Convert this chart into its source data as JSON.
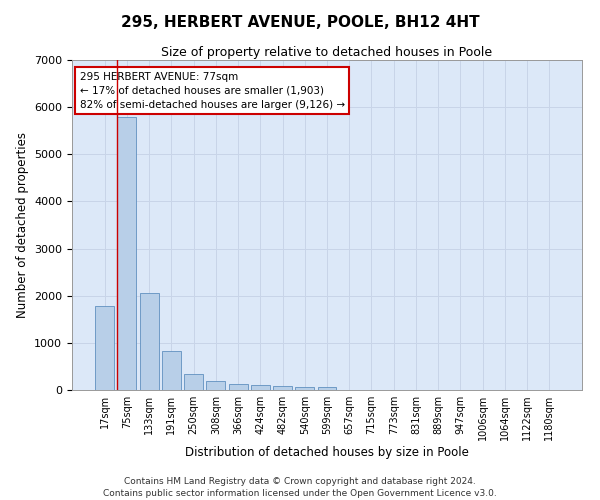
{
  "title": "295, HERBERT AVENUE, POOLE, BH12 4HT",
  "subtitle": "Size of property relative to detached houses in Poole",
  "xlabel": "Distribution of detached houses by size in Poole",
  "ylabel": "Number of detached properties",
  "categories": [
    "17sqm",
    "75sqm",
    "133sqm",
    "191sqm",
    "250sqm",
    "308sqm",
    "366sqm",
    "424sqm",
    "482sqm",
    "540sqm",
    "599sqm",
    "657sqm",
    "715sqm",
    "773sqm",
    "831sqm",
    "889sqm",
    "947sqm",
    "1006sqm",
    "1064sqm",
    "1122sqm",
    "1180sqm"
  ],
  "values": [
    1780,
    5800,
    2060,
    830,
    340,
    185,
    120,
    100,
    90,
    65,
    60,
    0,
    0,
    0,
    0,
    0,
    0,
    0,
    0,
    0,
    0
  ],
  "bar_color": "#b8cfe8",
  "bar_edgecolor": "#6090c0",
  "highlight_bar_index": 1,
  "highlight_line_color": "#cc0000",
  "annotation_text": "295 HERBERT AVENUE: 77sqm\n← 17% of detached houses are smaller (1,903)\n82% of semi-detached houses are larger (9,126) →",
  "annotation_box_edgecolor": "#cc0000",
  "ylim": [
    0,
    7000
  ],
  "yticks": [
    0,
    1000,
    2000,
    3000,
    4000,
    5000,
    6000,
    7000
  ],
  "grid_color": "#c8d4e8",
  "plot_bg_color": "#dce8f8",
  "fig_bg_color": "#ffffff",
  "footer1": "Contains HM Land Registry data © Crown copyright and database right 2024.",
  "footer2": "Contains public sector information licensed under the Open Government Licence v3.0.",
  "title_fontsize": 11,
  "subtitle_fontsize": 9,
  "ylabel_fontsize": 8.5,
  "xlabel_fontsize": 8.5,
  "ytick_fontsize": 8,
  "xtick_fontsize": 7,
  "annotation_fontsize": 7.5,
  "footer_fontsize": 6.5
}
